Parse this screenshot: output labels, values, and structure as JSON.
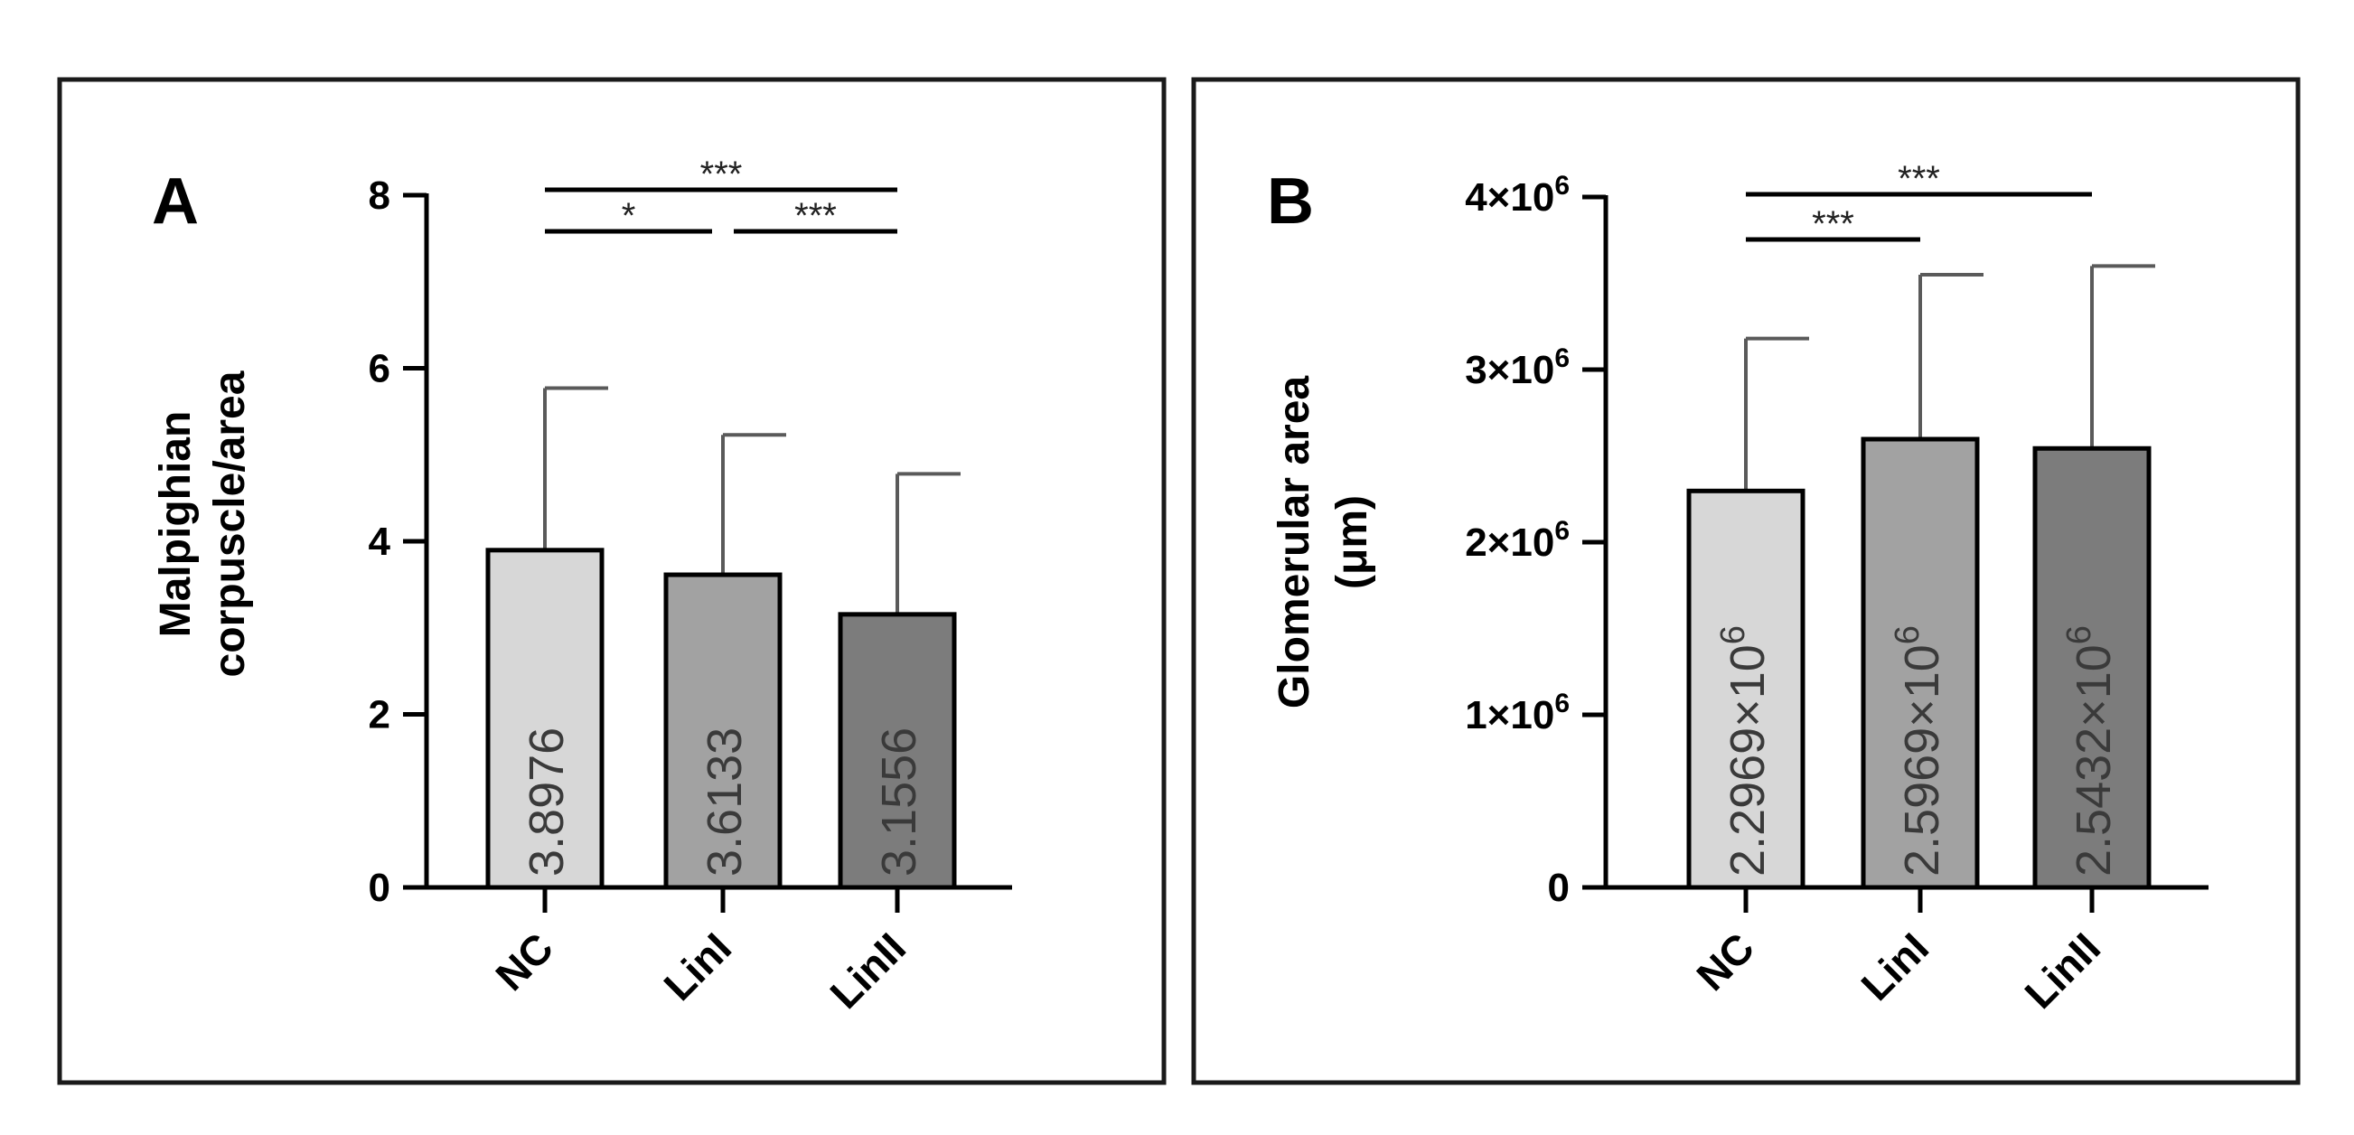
{
  "chart_data": [
    {
      "type": "bar",
      "panel_label": "A",
      "categories": [
        "NC",
        "LinI",
        "LinII"
      ],
      "values": [
        3.8976,
        3.6133,
        3.1556
      ],
      "value_labels": [
        "3.8976",
        "3.6133",
        "3.1556"
      ],
      "error_upper": [
        5.77,
        5.23,
        4.78
      ],
      "bar_colors": [
        "#d7d7d7",
        "#a2a2a2",
        "#7c7c7c"
      ],
      "ylabel_lines": [
        "Malpighian",
        "corpuscle/area"
      ],
      "ylim": [
        0,
        8
      ],
      "yticks": [
        0,
        2,
        4,
        6,
        8
      ],
      "ytick_labels": [
        "0",
        "2",
        "4",
        "6",
        "8"
      ],
      "significance": [
        {
          "from": 0,
          "to": 2,
          "label": "***",
          "level": 1
        },
        {
          "from": 0,
          "to": 1,
          "label": "*",
          "level": 0
        },
        {
          "from": 1,
          "to": 2,
          "label": "***",
          "level": 0
        }
      ]
    },
    {
      "type": "bar",
      "panel_label": "B",
      "categories": [
        "NC",
        "LinI",
        "LinII"
      ],
      "values": [
        2296900,
        2596900,
        2543200
      ],
      "value_labels": [
        "2.2969×10",
        "2.5969×10",
        "2.5432×10"
      ],
      "value_label_exponent": "6",
      "error_upper": [
        3180000,
        3550000,
        3600000
      ],
      "bar_colors": [
        "#d7d7d7",
        "#a2a2a2",
        "#7c7c7c"
      ],
      "ylabel_lines": [
        "Glomerular area",
        "(μm)"
      ],
      "ylim": [
        0,
        4000000
      ],
      "yticks": [
        0,
        1000000,
        2000000,
        3000000,
        4000000
      ],
      "ytick_labels": [
        "0",
        "1×10",
        "2×10",
        "3×10",
        "4×10"
      ],
      "ytick_exponent": "6",
      "significance": [
        {
          "from": 0,
          "to": 2,
          "label": "***",
          "level": 1
        },
        {
          "from": 0,
          "to": 1,
          "label": "***",
          "level": 0
        }
      ]
    }
  ]
}
